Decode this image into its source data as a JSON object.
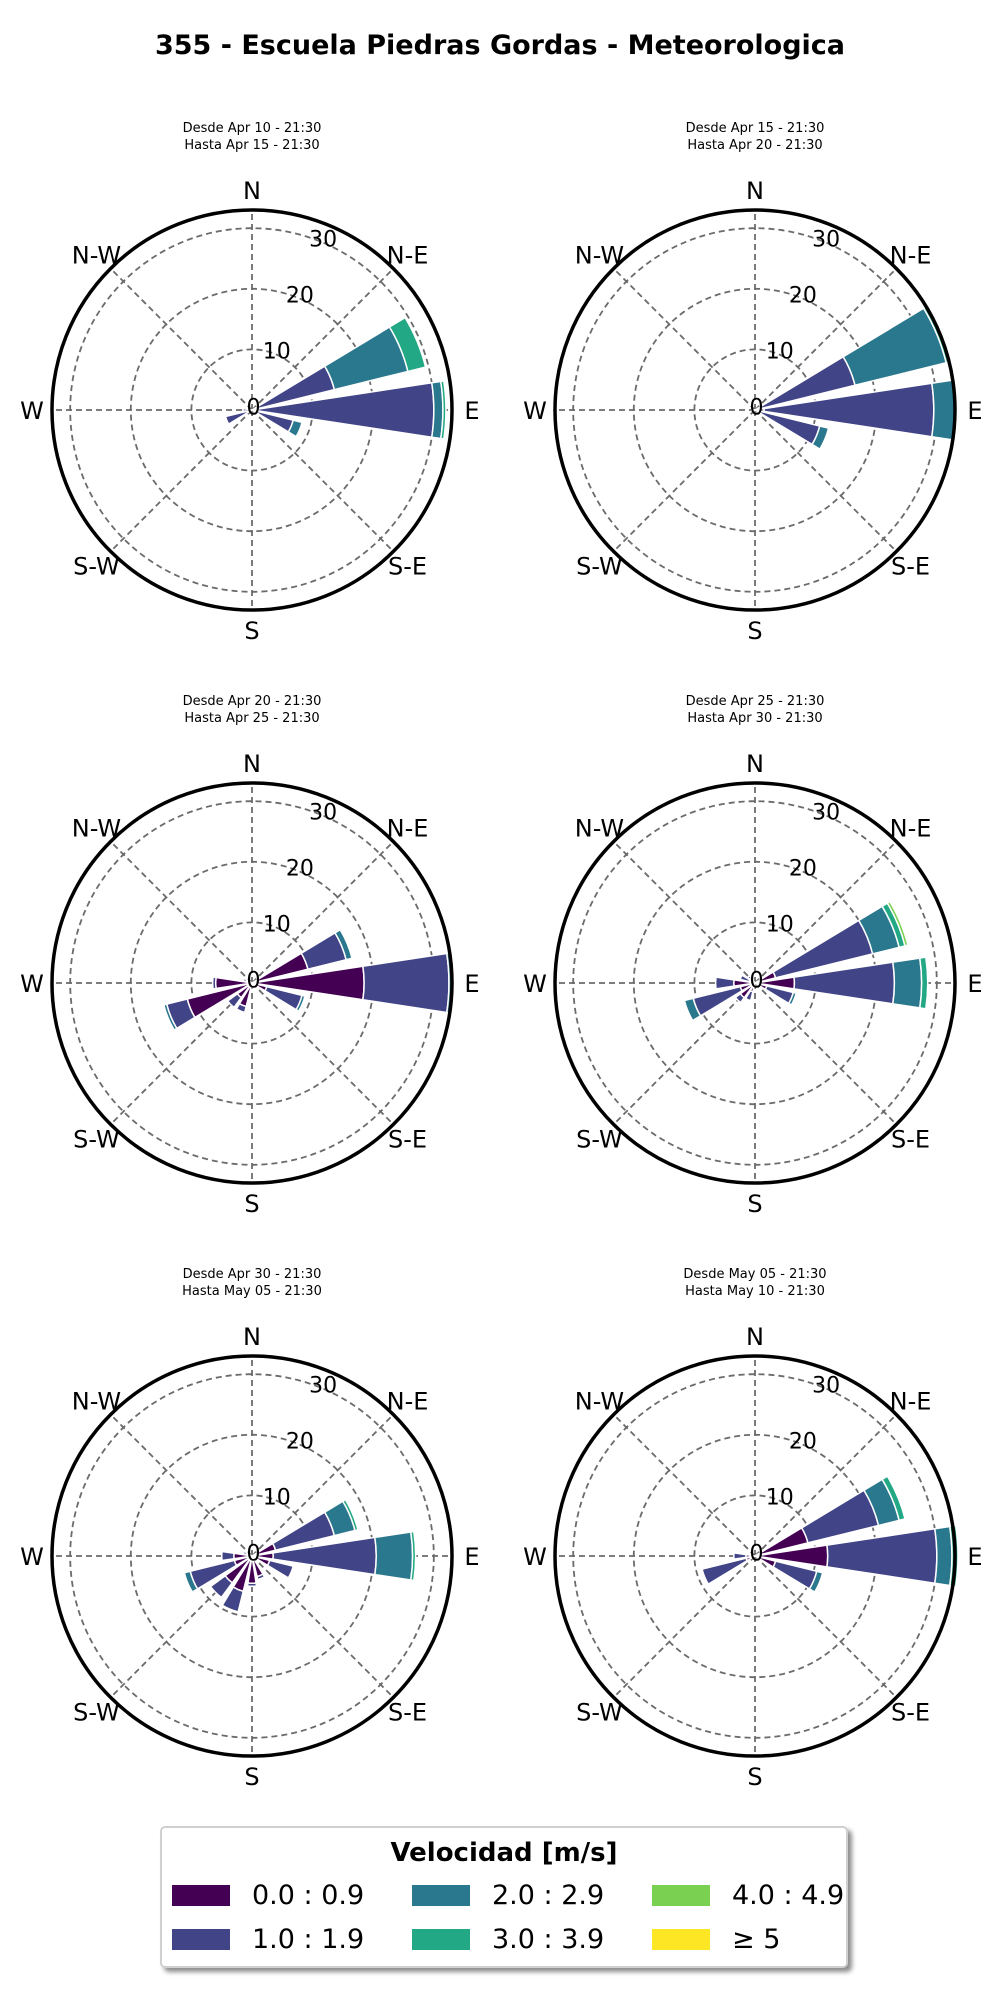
{
  "title": "355 - Escuela Piedras Gordas - Meteorologica",
  "legend": {
    "title": "Velocidad [m/s]",
    "items": [
      {
        "label": "0.0 : 0.9",
        "color": "#440154"
      },
      {
        "label": "1.0 : 1.9",
        "color": "#414487"
      },
      {
        "label": "2.0 : 2.9",
        "color": "#2a788e"
      },
      {
        "label": "3.0 : 3.9",
        "color": "#22a884"
      },
      {
        "label": "4.0 : 4.9",
        "color": "#7ad151"
      },
      {
        "label": "≥ 5",
        "color": "#fde725"
      }
    ]
  },
  "chart_data": [
    {
      "type": "windrose",
      "subtitle": [
        "Desde Apr 10 - 21:30",
        "Hasta Apr 15 - 21:30"
      ],
      "direction_labels": [
        "N",
        "N-E",
        "E",
        "S-E",
        "S",
        "S-W",
        "W",
        "N-W"
      ],
      "radial_ticks": [
        0,
        10,
        20,
        30
      ],
      "rmax": 33,
      "sectors": [
        {
          "dir": 67.5,
          "stacks": [
            1,
            14,
            26.5,
            29.5
          ]
        },
        {
          "dir": 90,
          "stacks": [
            1,
            30,
            31.5,
            32
          ]
        },
        {
          "dir": 112.5,
          "stacks": [
            0.5,
            7,
            8.5
          ]
        },
        {
          "dir": 247.5,
          "stacks": [
            0.5,
            4.5
          ]
        },
        {
          "dir": 270,
          "stacks": [
            0.5,
            1.5
          ]
        }
      ]
    },
    {
      "type": "windrose",
      "subtitle": [
        "Desde Apr 15 - 21:30",
        "Hasta Apr 20 - 21:30"
      ],
      "direction_labels": [
        "N",
        "N-E",
        "E",
        "S-E",
        "S",
        "S-W",
        "W",
        "N-W"
      ],
      "radial_ticks": [
        0,
        10,
        20,
        30
      ],
      "rmax": 33,
      "sectors": [
        {
          "dir": 67.5,
          "stacks": [
            1,
            17,
            32.5,
            33
          ]
        },
        {
          "dir": 90,
          "stacks": [
            1.5,
            29.5,
            33,
            33.3
          ]
        },
        {
          "dir": 112.5,
          "stacks": [
            1,
            11,
            12.5
          ]
        },
        {
          "dir": 247.5,
          "stacks": [
            0.5
          ]
        },
        {
          "dir": 270,
          "stacks": [
            0.5
          ]
        }
      ]
    },
    {
      "type": "windrose",
      "subtitle": [
        "Desde Apr 20 - 21:30",
        "Hasta Apr 25 - 21:30"
      ],
      "direction_labels": [
        "N",
        "N-E",
        "E",
        "S-E",
        "S",
        "S-W",
        "W",
        "N-W"
      ],
      "radial_ticks": [
        0,
        10,
        20,
        30
      ],
      "rmax": 33,
      "sectors": [
        {
          "dir": 67.5,
          "stacks": [
            9.5,
            16,
            17
          ]
        },
        {
          "dir": 90,
          "stacks": [
            18.5,
            32.5,
            33
          ]
        },
        {
          "dir": 112.5,
          "stacks": [
            2.5,
            8.5,
            9
          ]
        },
        {
          "dir": 157.5,
          "stacks": [
            0.5,
            1
          ]
        },
        {
          "dir": 202.5,
          "stacks": [
            4,
            5
          ]
        },
        {
          "dir": 225,
          "stacks": [
            3,
            5
          ]
        },
        {
          "dir": 247.5,
          "stacks": [
            11,
            14.5,
            15
          ]
        },
        {
          "dir": 270,
          "stacks": [
            6,
            6.5
          ]
        },
        {
          "dir": 292.5,
          "stacks": [
            1,
            1.5
          ]
        }
      ]
    },
    {
      "type": "windrose",
      "subtitle": [
        "Desde Apr 25 - 21:30",
        "Hasta Apr 30 - 21:30"
      ],
      "direction_labels": [
        "N",
        "N-E",
        "E",
        "S-E",
        "S",
        "S-W",
        "W",
        "N-W"
      ],
      "radial_ticks": [
        0,
        10,
        20,
        30
      ],
      "rmax": 33,
      "sectors": [
        {
          "dir": 67.5,
          "stacks": [
            3.5,
            20,
            24.5,
            25.5,
            26
          ]
        },
        {
          "dir": 90,
          "stacks": [
            6.5,
            23,
            27.5,
            28.5
          ]
        },
        {
          "dir": 112.5,
          "stacks": [
            2,
            6.5,
            7
          ]
        },
        {
          "dir": 202.5,
          "stacks": [
            1.5,
            3
          ]
        },
        {
          "dir": 225,
          "stacks": [
            3,
            4
          ]
        },
        {
          "dir": 247.5,
          "stacks": [
            2.5,
            10.5,
            12
          ]
        },
        {
          "dir": 270,
          "stacks": [
            3.5,
            6.5
          ]
        },
        {
          "dir": 292.5,
          "stacks": [
            1,
            2.5
          ]
        },
        {
          "dir": 315,
          "stacks": [
            1,
            1.5
          ]
        }
      ]
    },
    {
      "type": "windrose",
      "subtitle": [
        "Desde Apr 30 - 21:30",
        "Hasta May 05 - 21:30"
      ],
      "direction_labels": [
        "N",
        "N-E",
        "E",
        "S-E",
        "S",
        "S-W",
        "W",
        "N-W"
      ],
      "radial_ticks": [
        0,
        10,
        20,
        30
      ],
      "rmax": 33,
      "sectors": [
        {
          "dir": 67.5,
          "stacks": [
            4,
            14,
            17.5,
            18
          ]
        },
        {
          "dir": 90,
          "stacks": [
            3.5,
            20.5,
            26.5,
            27
          ]
        },
        {
          "dir": 112.5,
          "stacks": [
            3,
            7
          ]
        },
        {
          "dir": 157.5,
          "stacks": [
            3.5,
            4
          ]
        },
        {
          "dir": 180,
          "stacks": [
            4.5,
            5
          ]
        },
        {
          "dir": 202.5,
          "stacks": [
            6,
            9.5
          ]
        },
        {
          "dir": 225,
          "stacks": [
            5.5,
            8.5
          ]
        },
        {
          "dir": 247.5,
          "stacks": [
            3,
            10.5,
            11.5
          ]
        },
        {
          "dir": 270,
          "stacks": [
            3,
            5
          ]
        },
        {
          "dir": 292.5,
          "stacks": [
            1,
            1.5
          ]
        }
      ]
    },
    {
      "type": "windrose",
      "subtitle": [
        "Desde May 05 - 21:30",
        "Hasta May 10 - 21:30"
      ],
      "direction_labels": [
        "N",
        "N-E",
        "E",
        "S-E",
        "S",
        "S-W",
        "W",
        "N-W"
      ],
      "radial_ticks": [
        0,
        10,
        20,
        30
      ],
      "rmax": 33,
      "sectors": [
        {
          "dir": 67.5,
          "stacks": [
            9,
            21,
            24.5,
            25.5
          ]
        },
        {
          "dir": 90,
          "stacks": [
            12,
            30,
            32.5,
            33.5
          ]
        },
        {
          "dir": 112.5,
          "stacks": [
            3.5,
            10.5,
            11.5
          ]
        },
        {
          "dir": 247.5,
          "stacks": [
            1.5,
            9
          ]
        },
        {
          "dir": 270,
          "stacks": [
            1.5,
            3.5
          ]
        }
      ]
    }
  ]
}
